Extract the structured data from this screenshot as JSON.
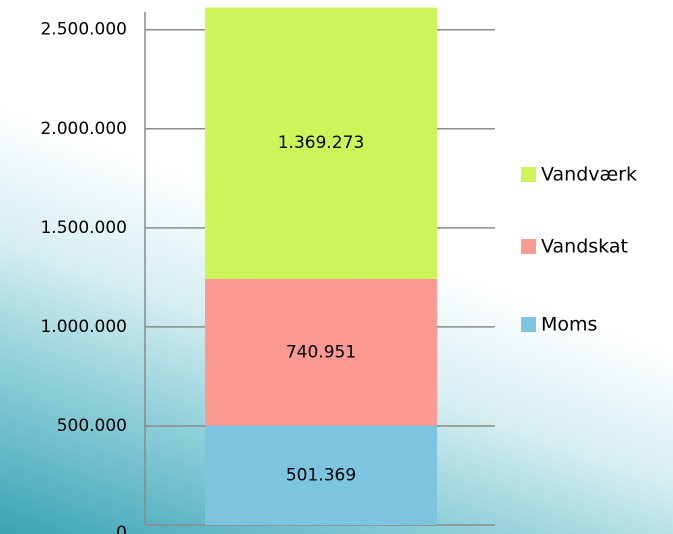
{
  "chart_data": {
    "type": "stacked_bar",
    "categories": [
      null
    ],
    "series": [
      {
        "name": "Moms",
        "color": "#7cc4df",
        "values": [
          501369
        ],
        "value_labels": [
          "501.369"
        ]
      },
      {
        "name": "Vandskat",
        "color": "#fb9a92",
        "values": [
          740951
        ],
        "value_labels": [
          "740.951"
        ]
      },
      {
        "name": "Vandværk",
        "color": "#ccf55a",
        "values": [
          1369273
        ],
        "value_labels": [
          "1.369.273"
        ]
      }
    ],
    "ylim": [
      0,
      2650000
    ],
    "yticks": [
      0,
      {
        "value": 500000,
        "label": "500.000"
      },
      {
        "value": 1000000,
        "label": "1.000.000"
      },
      {
        "value": 1500000,
        "label": "1.500.000"
      },
      {
        "value": 2000000,
        "label": "2.000.000"
      },
      {
        "value": 2500000,
        "label": "2.500.000"
      }
    ],
    "grid": true,
    "legend": "right"
  }
}
